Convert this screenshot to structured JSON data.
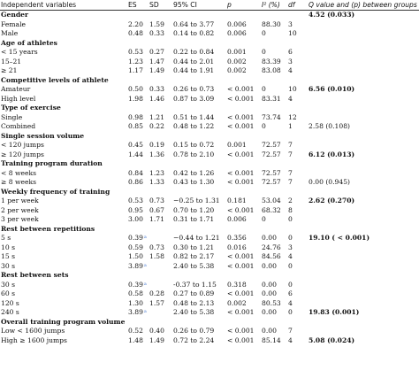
{
  "table": {
    "headers": [
      "Independent variables",
      "ES",
      "SD",
      "95% CI",
      "p",
      "I² (%)",
      "df",
      "Q value and (p) between groups"
    ],
    "rows": [
      {
        "type": "group",
        "label": "Gender",
        "q": "4.52 (0.033)",
        "q_bold": true
      },
      {
        "label": "Female",
        "es": "2.20",
        "sd": "1.59",
        "ci": "0.64 to 3.77",
        "p": "0.006",
        "i2": "88.30",
        "df": "3"
      },
      {
        "label": "Male",
        "es": "0.48",
        "sd": "0.33",
        "ci": "0.14 to 0.82",
        "p": "0.006",
        "i2": "0",
        "df": "10"
      },
      {
        "type": "group",
        "label": "Age of athletes"
      },
      {
        "label": "< 15 years",
        "es": "0.53",
        "sd": "0.27",
        "ci": "0.22 to 0.84",
        "p": "0.001",
        "i2": "0",
        "df": "6"
      },
      {
        "label": "15–21",
        "es": "1.23",
        "sd": "1.47",
        "ci": "0.44 to 2.01",
        "p": "0.002",
        "i2": "83.39",
        "df": "3"
      },
      {
        "label": "≥ 21",
        "es": "1.17",
        "sd": "1.49",
        "ci": "0.44 to 1.91",
        "p": "0.002",
        "i2": "83.08",
        "df": "4"
      },
      {
        "type": "group",
        "label": "Competitive levels of athlete"
      },
      {
        "label": "Amateur",
        "es": "0.50",
        "sd": "0.33",
        "ci": "0.26 to 0.73",
        "p": "< 0.001",
        "i2": "0",
        "df": "10",
        "q": "6.56 (0.010)",
        "q_bold": true
      },
      {
        "label": "High level",
        "es": "1.98",
        "sd": "1.46",
        "ci": "0.87 to 3.09",
        "p": "< 0.001",
        "i2": "83.31",
        "df": "4"
      },
      {
        "type": "group",
        "label": "Type of exercise"
      },
      {
        "label": "Single",
        "es": "0.98",
        "sd": "1.21",
        "ci": "0.51 to 1.44",
        "p": "< 0.001",
        "i2": "73.74",
        "df": "12"
      },
      {
        "label": "Combined",
        "es": "0.85",
        "sd": "0.22",
        "ci": "0.48 to 1.22",
        "p": "< 0.001",
        "i2": "0",
        "df": "1",
        "q": "2.58 (0.108)"
      },
      {
        "type": "group",
        "label": "Single session volume"
      },
      {
        "label": "< 120 jumps",
        "es": "0.45",
        "sd": "0.19",
        "ci": "0.15 to 0.72",
        "p": "0.001",
        "i2": "72.57",
        "df": "7"
      },
      {
        "label": "≥ 120 jumps",
        "es": "1.44",
        "sd": "1.36",
        "ci": "0.78 to 2.10",
        "p": "< 0.001",
        "i2": "72.57",
        "df": "7",
        "q": "6.12 (0.013)",
        "q_bold": true
      },
      {
        "type": "group",
        "label": "Training program duration"
      },
      {
        "label": "< 8 weeks",
        "es": "0.84",
        "sd": "1.23",
        "ci": "0.42 to 1.26",
        "p": "< 0.001",
        "i2": "72.57",
        "df": "7"
      },
      {
        "label": "≥ 8 weeks",
        "es": "0.86",
        "sd": "1.33",
        "ci": "0.43 to 1.30",
        "p": "< 0.001",
        "i2": "72.57",
        "df": "7",
        "q": "0.00 (0.945)"
      },
      {
        "type": "group",
        "label": "Weekly frequency of training"
      },
      {
        "label": "1 per week",
        "es": "0.53",
        "sd": "0.73",
        "ci": "−0.25 to 1.31",
        "p": "0.181",
        "i2": "53.04",
        "df": "2",
        "q": "2.62 (0.270)",
        "q_bold": true
      },
      {
        "label": "2 per week",
        "es": "0.95",
        "sd": "0.67",
        "ci": "0.70 to 1.20",
        "p": "< 0.001",
        "i2": "68.32",
        "df": "8"
      },
      {
        "label": "3 per week",
        "es": "3.00",
        "sd": "1.71",
        "ci": "0.31 to 1.71",
        "p": "0.006",
        "i2": "0",
        "df": "0"
      },
      {
        "type": "group",
        "label": "Rest between repetitions"
      },
      {
        "label": "5 s",
        "es": "0.39",
        "es_sup": "a",
        "ci": "−0.44 to 1.21",
        "p": "0.356",
        "i2": "0.00",
        "df": "0",
        "q": "19.10 ( < 0.001)",
        "q_bold": true
      },
      {
        "label": "10 s",
        "es": "0.59",
        "sd": "0.73",
        "ci": "0.30 to 1.21",
        "p": "0.016",
        "i2": "24.76",
        "df": "3"
      },
      {
        "label": "15 s",
        "es": "1.50",
        "sd": "1.58",
        "ci": "0.82 to 2.17",
        "p": "< 0.001",
        "i2": "84.56",
        "df": "4"
      },
      {
        "label": "30 s",
        "es": "3.89",
        "es_sup": "a",
        "ci": "2.40 to 5.38",
        "p": "< 0.001",
        "i2": "0.00",
        "df": "0"
      },
      {
        "type": "group",
        "label": "Rest between sets"
      },
      {
        "label": "30 s",
        "es": "0.39",
        "es_sup": "a",
        "ci": "-0.37 to 1.15",
        "p": "0.318",
        "i2": "0.00",
        "df": "0"
      },
      {
        "label": "60 s",
        "es": "0.58",
        "sd": "0.28",
        "ci": "0.27 to 0.89",
        "p": "< 0.001",
        "i2": "0.00",
        "df": "6"
      },
      {
        "label": "120 s",
        "es": "1.30",
        "sd": "1.57",
        "ci": "0.48 to 2.13",
        "p": "0.002",
        "i2": "80.53",
        "df": "4"
      },
      {
        "label": "240 s",
        "es": "3.89",
        "es_sup": "a",
        "ci": "2.40 to 5.38",
        "p": "< 0.001",
        "i2": "0.00",
        "df": "0",
        "q": "19.83 (0.001)",
        "q_bold": true
      },
      {
        "type": "group",
        "label": "Overall training program volume"
      },
      {
        "label": "Low < 1600 jumps",
        "es": "0.52",
        "sd": "0.40",
        "ci": "0.26 to 0.79",
        "p": "< 0.001",
        "i2": "0.00",
        "df": "7"
      },
      {
        "label": "High ≥ 1600 jumps",
        "es": "1.48",
        "sd": "1.49",
        "ci": "0.72 to 2.24",
        "p": "< 0.001",
        "i2": "85.14",
        "df": "4",
        "q": "5.08 (0.024)",
        "q_bold": true
      }
    ]
  },
  "colors": {
    "text": "#111111",
    "footnote_marker": "#4a7bd0",
    "rule": "#333333"
  }
}
